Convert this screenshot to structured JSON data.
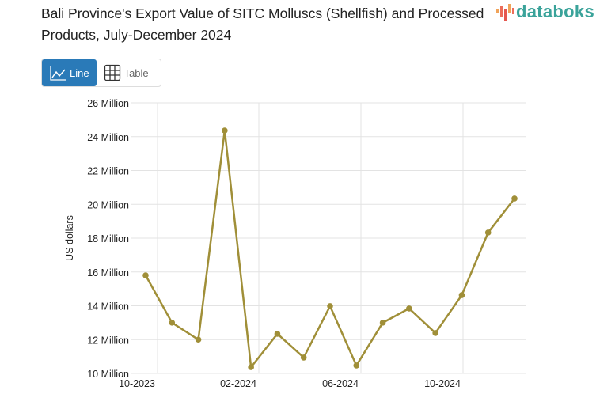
{
  "title": "Bali Province's Export Value of SITC Molluscs (Shellfish) and Processed Products, July-December 2024",
  "logo": "databoks",
  "view_toggle": {
    "line_label": "Line",
    "table_label": "Table",
    "active": "Line",
    "line_icon": "line-chart-icon",
    "table_icon": "table-grid-icon"
  },
  "colors": {
    "series": "#a08f38",
    "active_button": "#2a7ab8",
    "logo": "#3aa39a"
  },
  "chart_data": {
    "type": "line",
    "ylabel": "US dollars",
    "ylim": [
      10,
      26
    ],
    "yticks": [
      "10 Million",
      "12 Million",
      "14 Million",
      "16 Million",
      "18 Million",
      "20 Million",
      "22 Million",
      "24 Million",
      "26 Million"
    ],
    "xticks": [
      "10-2023",
      "02-2024",
      "06-2024",
      "10-2024"
    ],
    "grid": true,
    "x": [
      "2023-09",
      "2023-10",
      "2023-11",
      "2023-12",
      "2024-01",
      "2024-02",
      "2024-03",
      "2024-04",
      "2024-05",
      "2024-06",
      "2024-07",
      "2024-08",
      "2024-09",
      "2024-10",
      "2024-11"
    ],
    "series": [
      {
        "values": [
          15.8,
          13.0,
          12.0,
          24.36,
          10.37,
          12.34,
          10.94,
          13.98,
          10.47,
          13.0,
          13.84,
          12.39,
          14.63,
          18.33,
          20.34
        ]
      }
    ]
  }
}
